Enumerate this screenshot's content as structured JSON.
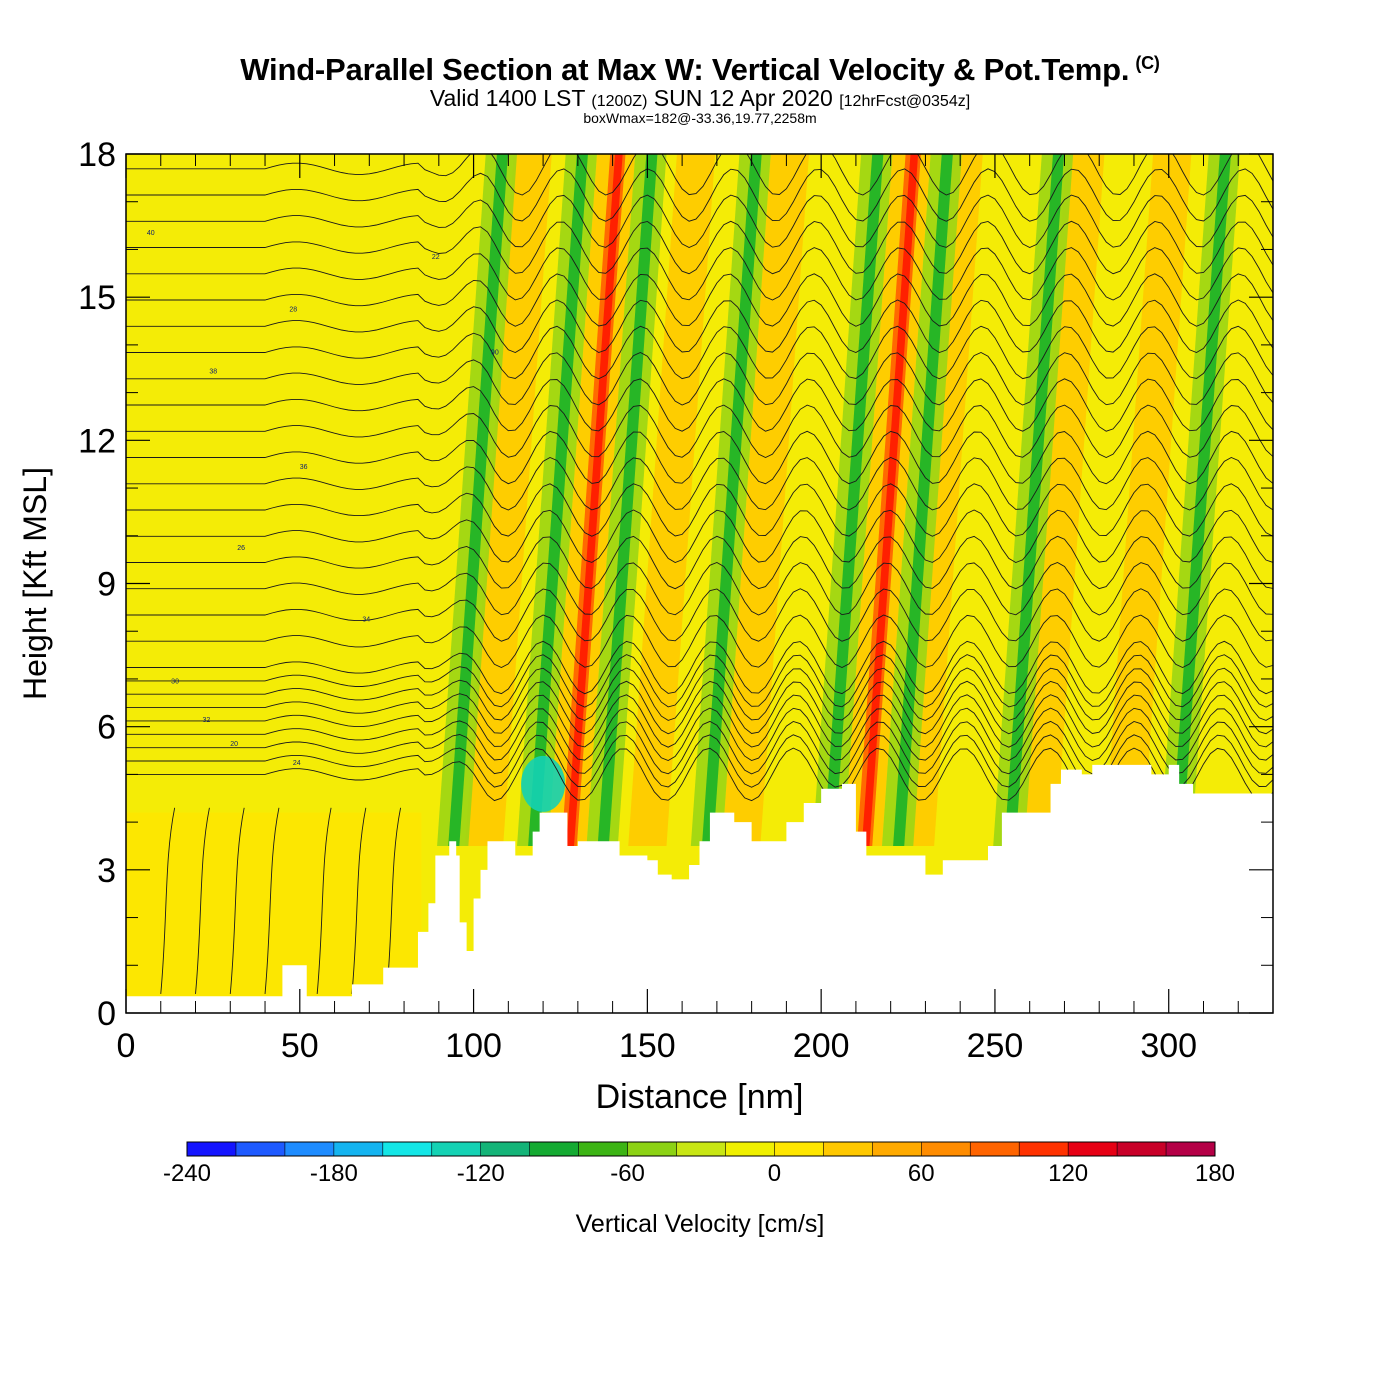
{
  "header": {
    "title": "Wind-Parallel Section at Max W: Vertical Velocity & Pot.Temp.",
    "copyright": "(C)",
    "valid_prefix": "Valid 1400 LST",
    "valid_utc": "(1200Z)",
    "valid_date": "SUN 12 Apr 2020",
    "forecast": "[12hrFcst@0354z]",
    "boxwmax": "boxWmax=182@-33.36,19.77,2258m"
  },
  "chart_data": {
    "type": "heatmap",
    "xlabel": "Distance [nm]",
    "ylabel": "Height [Kft MSL]",
    "xlim": [
      0,
      330
    ],
    "ylim": [
      0,
      18
    ],
    "x_ticks": [
      0,
      50,
      100,
      150,
      200,
      250,
      300
    ],
    "y_ticks": [
      0,
      3,
      6,
      9,
      12,
      15,
      18
    ],
    "terrain_kft": [
      [
        0,
        0.35
      ],
      [
        43,
        0.35
      ],
      [
        45,
        1.0
      ],
      [
        50,
        1.0
      ],
      [
        52,
        0.35
      ],
      [
        62,
        0.35
      ],
      [
        65,
        0.6
      ],
      [
        72,
        0.6
      ],
      [
        74,
        0.95
      ],
      [
        82,
        0.95
      ],
      [
        84,
        1.7
      ],
      [
        87,
        2.3
      ],
      [
        89,
        3.3
      ],
      [
        93,
        3.6
      ],
      [
        95,
        3.3
      ],
      [
        96,
        1.9
      ],
      [
        98,
        1.3
      ],
      [
        100,
        2.4
      ],
      [
        102,
        3.0
      ],
      [
        104,
        3.6
      ],
      [
        110,
        3.6
      ],
      [
        112,
        3.3
      ],
      [
        117,
        3.8
      ],
      [
        119,
        4.2
      ],
      [
        124,
        4.2
      ],
      [
        127,
        3.5
      ],
      [
        130,
        3.6
      ],
      [
        138,
        3.6
      ],
      [
        142,
        3.3
      ],
      [
        150,
        3.2
      ],
      [
        153,
        2.9
      ],
      [
        157,
        2.8
      ],
      [
        162,
        3.1
      ],
      [
        165,
        3.6
      ],
      [
        168,
        4.2
      ],
      [
        175,
        4.0
      ],
      [
        180,
        3.6
      ],
      [
        190,
        4.0
      ],
      [
        195,
        4.4
      ],
      [
        200,
        4.7
      ],
      [
        206,
        4.8
      ],
      [
        210,
        3.8
      ],
      [
        213,
        3.3
      ],
      [
        225,
        3.3
      ],
      [
        230,
        2.9
      ],
      [
        235,
        3.2
      ],
      [
        248,
        3.5
      ],
      [
        252,
        4.2
      ],
      [
        260,
        4.2
      ],
      [
        266,
        4.8
      ],
      [
        269,
        5.1
      ],
      [
        275,
        5.0
      ],
      [
        278,
        5.2
      ],
      [
        290,
        5.2
      ],
      [
        295,
        5.0
      ],
      [
        300,
        5.2
      ],
      [
        303,
        4.8
      ],
      [
        307,
        4.6
      ],
      [
        330,
        4.6
      ]
    ],
    "updraft_x_nm": [
      103,
      127,
      150,
      177,
      212,
      227,
      262,
      287
    ],
    "downdraft_x_nm": [
      94,
      117,
      137,
      167,
      202,
      222,
      254,
      302
    ],
    "contour_labels": [
      "40",
      "28",
      "38",
      "36",
      "26",
      "34",
      "30",
      "32",
      "20",
      "24",
      "22",
      "90"
    ],
    "colorbar": {
      "label": "Vertical Velocity [cm/s]",
      "ticks": [
        -240,
        -180,
        -120,
        -60,
        0,
        60,
        120,
        180
      ],
      "tick_labels": [
        "-240",
        "-180",
        "-120",
        "-60",
        "0",
        "60",
        "120",
        "180"
      ],
      "colors": [
        "#1414ff",
        "#1e5aff",
        "#1e8cff",
        "#14b4f0",
        "#14e6e6",
        "#14d2b4",
        "#14b478",
        "#14aa32",
        "#3cb414",
        "#8cd214",
        "#c8e614",
        "#f0f000",
        "#ffe600",
        "#ffc800",
        "#ffaa00",
        "#ff8c00",
        "#ff6400",
        "#ff3200",
        "#e60014",
        "#c80028",
        "#b40046"
      ]
    }
  }
}
